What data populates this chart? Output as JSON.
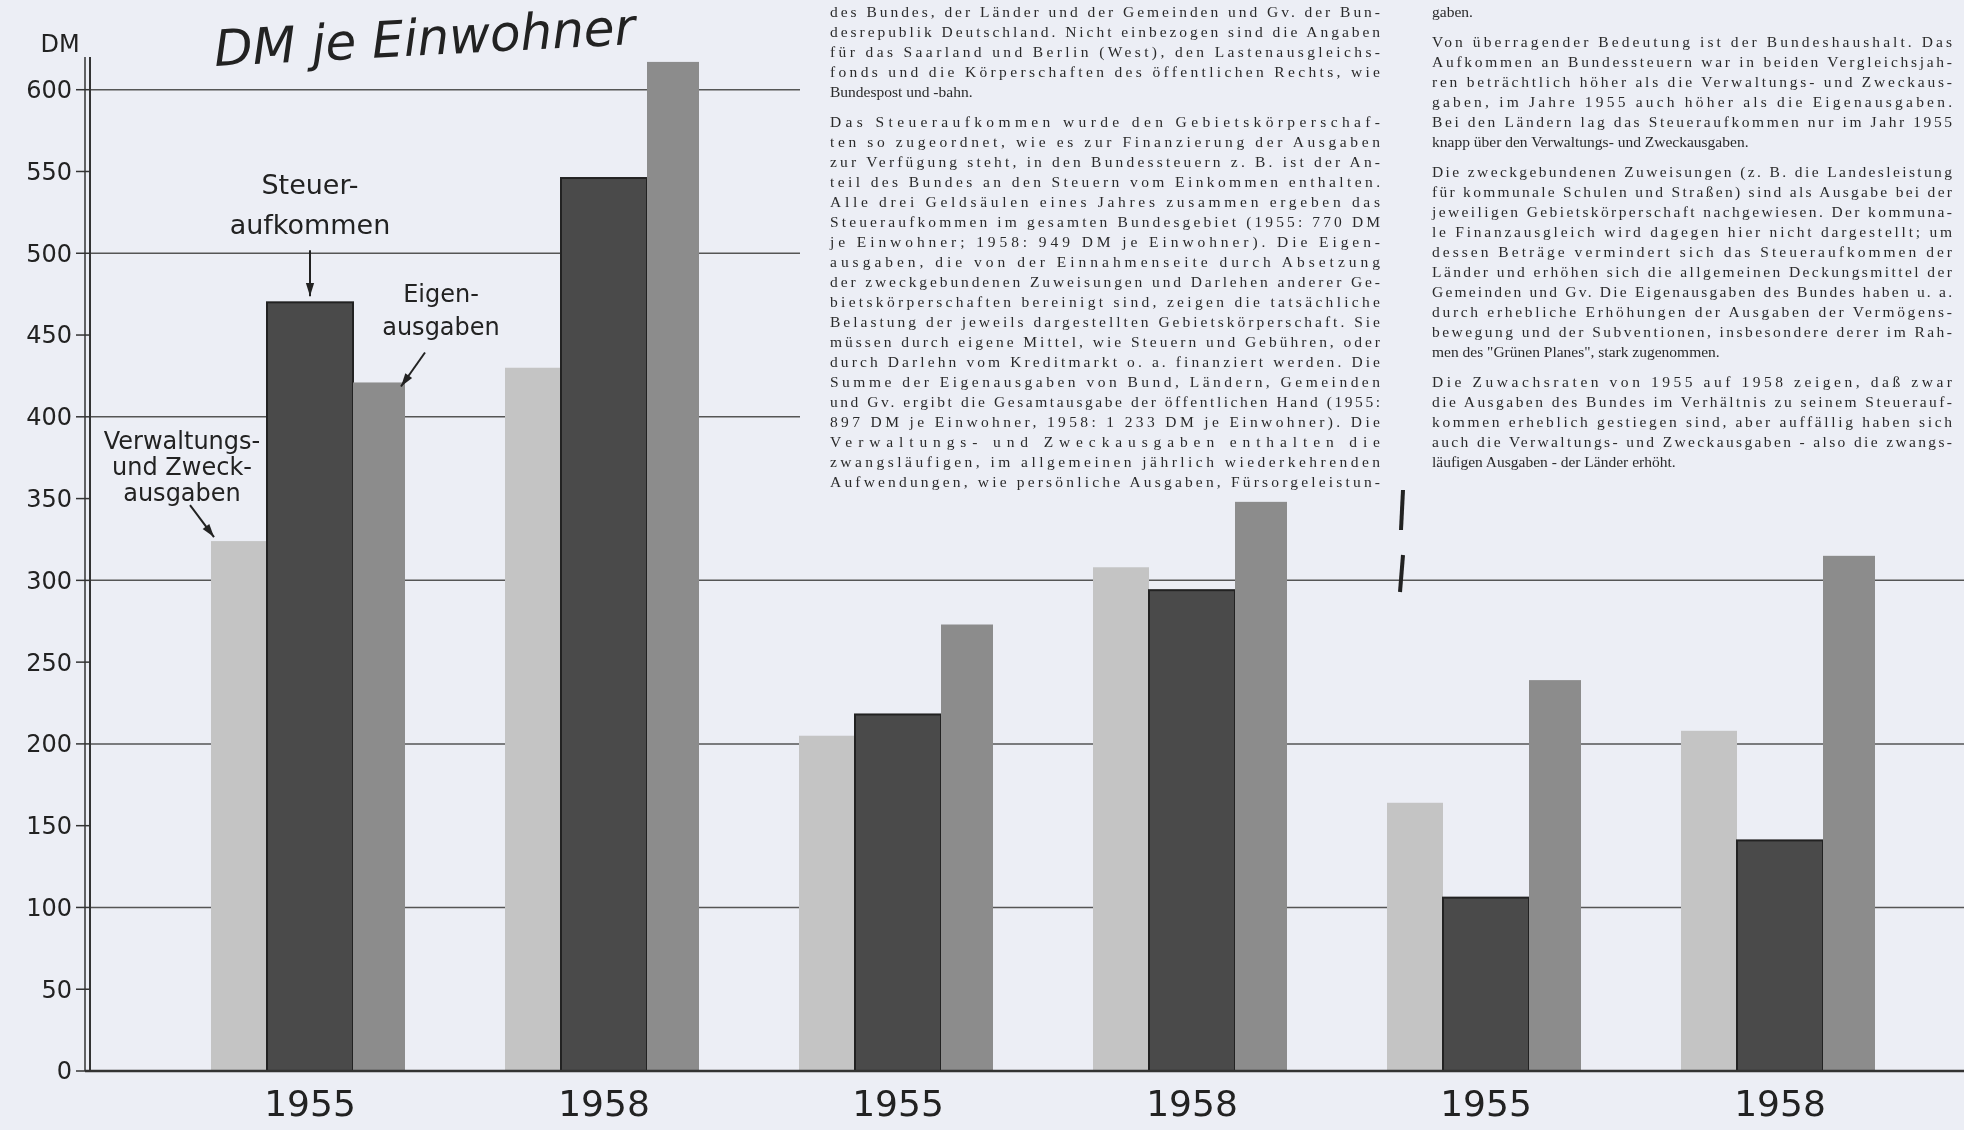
{
  "chart_data": {
    "type": "bar",
    "title": "DM je Einwohner",
    "ylabel": "DM",
    "categories": [
      "1955",
      "1958",
      "1955",
      "1958",
      "1955",
      "1958"
    ],
    "series": [
      {
        "name": "Verwaltungs-\nund Zweck-\nausgaben",
        "color": "#c4c4c4",
        "values": [
          324,
          430,
          205,
          308,
          164,
          208
        ]
      },
      {
        "name": "Steuer-\naufkommen",
        "color": "#4a4a4a",
        "values": [
          470,
          546,
          218,
          294,
          106,
          141
        ]
      },
      {
        "name": "Eigen-\nausgaben",
        "color": "#8c8c8c",
        "values": [
          421,
          617,
          273,
          348,
          239,
          315
        ]
      }
    ],
    "ylim": [
      0,
      620
    ],
    "yticks": [
      0,
      50,
      100,
      150,
      200,
      250,
      300,
      350,
      400,
      450,
      500,
      550,
      600
    ],
    "grid": "y",
    "annotations": [
      "des Bundes, der Länder und der Gemeinden und Gv. der Bun-\ndesrepublik Deutschland. Nicht einbezogen sind die Angaben\nfür das Saarland und Berlin (West), den Lastenausgleichs-\nfonds und die Körperschaften des öffentlichen Rechts, wie\nBundespost und -bahn.",
      "Das Steueraufkommen wurde den Gebietskörperschaf-\nten so zugeordnet, wie es zur Finanzierung der Ausgaben\nzur Verfügung steht, in den Bundessteuern z. B. ist der An-\nteil des Bundes an den Steuern vom Einkommen enthalten.\nAlle drei Geldsäulen eines Jahres zusammen ergeben das\nSteueraufkommen im gesamten Bundesgebiet (1955: 770 DM\nje Einwohner; 1958: 949 DM je Einwohner). Die Eigen-\nausgaben, die von der Einnahmenseite durch Absetzung\nder zweckgebundenen Zuweisungen und Darlehen anderer Ge-\nbietskörperschaften bereinigt sind, zeigen die tatsächliche\nBelastung der jeweils dargestellten Gebietskörperschaft. Sie\nmüssen durch eigene Mittel, wie Steuern und Gebühren, oder\ndurch Darlehn vom Kreditmarkt o. a. finanziert werden. Die\nSumme der Eigenausgaben von Bund, Ländern, Gemeinden\nund Gv. ergibt die Gesamtausgabe der öffentlichen Hand (1955:\n897 DM je Einwohner, 1958: 1 233 DM je Einwohner). Die\nVerwaltungs- und Zweckausgaben enthalten die\nzwangsläufigen, im allgemeinen jährlich wiederkehrenden\nAufwendungen, wie persönliche Ausgaben, Fürsorgeleistun-",
      "gaben.",
      "Von überragender Bedeutung ist der Bundeshaushalt. Das\nAufkommen an Bundessteuern war in beiden Vergleichsjah-\nren beträchtlich höher als die Verwaltungs- und Zweckaus-\ngaben, im Jahre 1955 auch höher als die Eigenausgaben.\nBei den Ländern lag das Steueraufkommen nur im Jahr 1955\nknapp über den Verwaltungs- und Zweckausgaben.",
      "Die zweckgebundenen Zuweisungen (z. B. die Landesleistung\nfür kommunale Schulen und Straßen) sind als Ausgabe bei der\njeweiligen Gebietskörperschaft nachgewiesen. Der kommuna-\nle Finanzausgleich wird dagegen hier nicht dargestellt; um\ndessen Beträge vermindert sich das Steueraufkommen der\nLänder und erhöhen sich die allgemeinen Deckungsmittel der\nGemeinden und Gv. Die Eigenausgaben des Bundes haben u. a.\ndurch erhebliche Erhöhungen der Ausgaben der Vermögens-\nbewegung und der Subventionen, insbesondere derer im Rah-\nmen des \"Grünen Planes\", stark zugenommen.",
      "Die Zuwachsraten von 1955 auf 1958 zeigen, daß zwar\ndie Ausgaben des Bundes im Verhältnis zu seinem Steuerauf-\nkommen erheblich gestiegen sind, aber auffällig haben sich\nauch die Verwaltungs- und Zweckausgaben - also die zwangs-\nläufigen Ausgaben - der Länder erhöht."
    ]
  }
}
